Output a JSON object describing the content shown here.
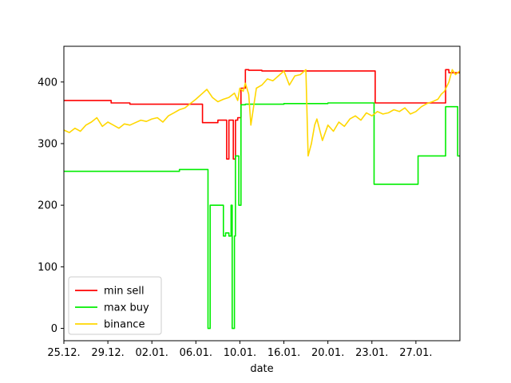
{
  "chart_data": {
    "type": "line",
    "xlabel": "date",
    "ylabel": "",
    "xlim": [
      0,
      36
    ],
    "ylim": [
      -20,
      458
    ],
    "x_ticks": [
      {
        "x": 0,
        "label": "25.12."
      },
      {
        "x": 4,
        "label": "29.12."
      },
      {
        "x": 8,
        "label": "02.01."
      },
      {
        "x": 12,
        "label": "06.01."
      },
      {
        "x": 16,
        "label": "10.01."
      },
      {
        "x": 20,
        "label": "16.01."
      },
      {
        "x": 24,
        "label": "20.01."
      },
      {
        "x": 28,
        "label": "23.01."
      },
      {
        "x": 32,
        "label": "27.01."
      }
    ],
    "y_ticks": [
      0,
      100,
      200,
      300,
      400
    ],
    "legend_position": "lower left",
    "series": [
      {
        "name": "min sell",
        "color": "#ff0000",
        "step": true,
        "x": [
          0,
          4,
          4.3,
          6,
          10,
          12.2,
          12.6,
          14,
          14.8,
          15,
          15.2,
          15.4,
          15.6,
          15.8,
          16.1,
          16.5,
          16.8,
          18,
          20,
          21.6,
          22,
          28.1,
          28.3,
          32,
          33.2,
          34.7,
          35,
          36
        ],
        "values": [
          370,
          370,
          366,
          364,
          364,
          364,
          334,
          338,
          275,
          338,
          338,
          275,
          338,
          342,
          390,
          420,
          419,
          418,
          418,
          418,
          418,
          418,
          366,
          366,
          366,
          420,
          415,
          415
        ]
      },
      {
        "name": "max buy",
        "color": "#00ee00",
        "step": true,
        "x": [
          0,
          10.5,
          12.6,
          13.1,
          13.3,
          14.1,
          14.5,
          14.7,
          15,
          15.2,
          15.3,
          15.5,
          15.6,
          15.9,
          16.1,
          16.5,
          20,
          24,
          28,
          28.2,
          32,
          32.2,
          33.5,
          34.7,
          35.8,
          36
        ],
        "values": [
          255,
          258,
          258,
          0,
          200,
          200,
          150,
          155,
          150,
          200,
          0,
          150,
          280,
          200,
          363,
          364,
          365,
          366,
          366,
          234,
          234,
          280,
          280,
          360,
          280,
          280
        ]
      },
      {
        "name": "binance",
        "color": "#ffd700",
        "step": false,
        "x": [
          0,
          0.5,
          1,
          1.5,
          2,
          2.5,
          3,
          3.5,
          4,
          4.5,
          5,
          5.5,
          6,
          6.5,
          7,
          7.5,
          8,
          8.5,
          9,
          9.5,
          10,
          10.5,
          11,
          11.5,
          12,
          12.5,
          13,
          13.5,
          14,
          14.5,
          15,
          15.5,
          15.8,
          16,
          16.3,
          16.5,
          16.8,
          17,
          17.5,
          18,
          18.5,
          19,
          19.5,
          20,
          20.5,
          21,
          21.5,
          22,
          22.2,
          22.5,
          22.8,
          23,
          23.5,
          24,
          24.5,
          25,
          25.5,
          26,
          26.5,
          27,
          27.5,
          28,
          28.5,
          29,
          29.5,
          30,
          30.5,
          31,
          31.5,
          32,
          32.5,
          33,
          33.5,
          34,
          34.3,
          34.6,
          35,
          35.3,
          35.6,
          36
        ],
        "values": [
          322,
          318,
          325,
          320,
          330,
          335,
          342,
          328,
          335,
          330,
          325,
          332,
          330,
          334,
          338,
          336,
          340,
          342,
          335,
          345,
          350,
          355,
          358,
          365,
          372,
          380,
          388,
          375,
          368,
          372,
          375,
          382,
          370,
          390,
          385,
          398,
          380,
          330,
          390,
          395,
          405,
          402,
          410,
          418,
          395,
          410,
          412,
          420,
          280,
          300,
          330,
          340,
          305,
          330,
          320,
          335,
          328,
          340,
          345,
          338,
          350,
          345,
          352,
          348,
          350,
          355,
          352,
          358,
          348,
          352,
          360,
          365,
          368,
          372,
          380,
          385,
          400,
          420,
          412,
          418
        ]
      }
    ]
  }
}
